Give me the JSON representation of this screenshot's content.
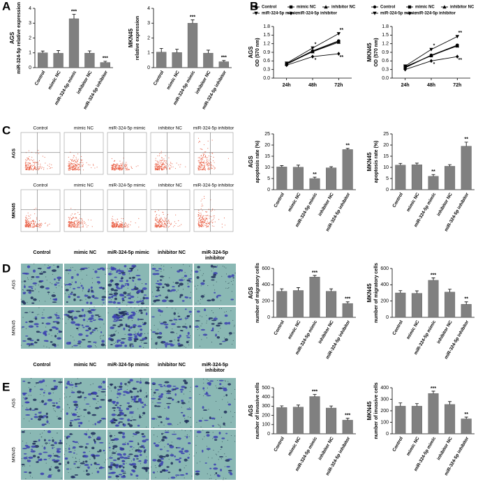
{
  "panels": {
    "letters": [
      "A",
      "B",
      "C",
      "D",
      "E"
    ],
    "columns": [
      "Control",
      "mimic NC",
      "miR-324-5p mimic",
      "inhibitor NC",
      "miR-324-5p inhibitor"
    ],
    "rows": [
      "AGS",
      "MKN45"
    ]
  },
  "chart_data": [
    {
      "type": "bar",
      "panel_label": "AGS",
      "ylabel": "miR-324-5p relative expression",
      "categories": [
        "Control",
        "mimic NC",
        "miR-324-5p mimic",
        "inhibitor NC",
        "miR-324-5p inhibitor"
      ],
      "values": [
        1.0,
        0.97,
        3.3,
        0.98,
        0.35
      ],
      "errors": [
        0.12,
        0.18,
        0.3,
        0.15,
        0.08
      ],
      "annotations": [
        null,
        null,
        "***",
        null,
        "***"
      ],
      "color": "#808080",
      "ylim": [
        0,
        4
      ],
      "yticks": [
        0,
        1,
        2,
        3,
        4
      ]
    },
    {
      "type": "bar",
      "panel_label": "MKN45",
      "ylabel": "relative expression",
      "categories": [
        "Control",
        "mimic NC",
        "miR-324-5p mimic",
        "inhibitor NC",
        "miR-324-5p inhibitor"
      ],
      "values": [
        1.05,
        1.02,
        3.0,
        0.98,
        0.4
      ],
      "errors": [
        0.25,
        0.22,
        0.22,
        0.2,
        0.08
      ],
      "annotations": [
        null,
        null,
        "***",
        null,
        "***"
      ],
      "color": "#808080",
      "ylim": [
        0,
        4
      ],
      "yticks": [
        0,
        1,
        2,
        3,
        4
      ]
    },
    {
      "type": "line",
      "panel_label": "AGS",
      "ylabel": "OD (570 nm)",
      "categories": [
        "24h",
        "48h",
        "72h"
      ],
      "series": [
        {
          "name": "Control",
          "color": "#000000",
          "marker": "circle",
          "values": [
            0.5,
            0.95,
            1.3
          ],
          "annotations": [
            null,
            null,
            null
          ]
        },
        {
          "name": "mimic NC",
          "color": "#000000",
          "marker": "square",
          "values": [
            0.48,
            0.93,
            1.28
          ],
          "annotations": [
            null,
            null,
            null
          ]
        },
        {
          "name": "inhibitor NC",
          "color": "#000000",
          "marker": "triangle",
          "values": [
            0.5,
            0.92,
            1.25
          ],
          "annotations": [
            null,
            null,
            null
          ]
        },
        {
          "name": "miR-324-5p mimic",
          "color": "#000000",
          "marker": "triangle-down",
          "values": [
            0.52,
            1.05,
            1.55
          ],
          "annotations": [
            null,
            "*",
            "**"
          ]
        },
        {
          "name": "miR-324-5p inhibitor",
          "color": "#000000",
          "marker": "diamond",
          "values": [
            0.45,
            0.75,
            0.85
          ],
          "annotations": [
            null,
            "*",
            "**"
          ]
        }
      ],
      "ylim": [
        0,
        1.8
      ],
      "yticks": [
        {
          "value": 0,
          "label": "0.0"
        },
        0.3,
        0.6,
        0.9,
        1.2,
        1.5,
        1.8
      ]
    },
    {
      "type": "line",
      "panel_label": "MKN45",
      "ylabel": "OD (570 nm)",
      "categories": [
        "24h",
        "48h",
        "72h"
      ],
      "series": [
        {
          "name": "Control",
          "color": "#000000",
          "marker": "circle",
          "values": [
            0.38,
            0.8,
            1.15
          ],
          "annotations": [
            null,
            null,
            null
          ]
        },
        {
          "name": "mimic NC",
          "color": "#000000",
          "marker": "square",
          "values": [
            0.4,
            0.78,
            1.13
          ],
          "annotations": [
            null,
            null,
            null
          ]
        },
        {
          "name": "inhibitor NC",
          "color": "#000000",
          "marker": "triangle",
          "values": [
            0.36,
            0.8,
            1.12
          ],
          "annotations": [
            null,
            null,
            null
          ]
        },
        {
          "name": "miR-324-5p mimic",
          "color": "#000000",
          "marker": "triangle-down",
          "values": [
            0.42,
            1.0,
            1.45
          ],
          "annotations": [
            null,
            "*",
            "**"
          ]
        },
        {
          "name": "miR-324-5p inhibitor",
          "color": "#000000",
          "marker": "diamond",
          "values": [
            0.3,
            0.6,
            0.75
          ],
          "annotations": [
            null,
            "*",
            "**"
          ]
        }
      ],
      "ylim": [
        0,
        1.8
      ],
      "yticks": [
        {
          "value": 0,
          "label": "0.0"
        },
        0.3,
        0.6,
        0.9,
        1.2,
        1.5,
        1.8
      ]
    },
    {
      "type": "bar",
      "panel_label": "AGS",
      "ylabel": "apoptosis rate (%)",
      "categories": [
        "Control",
        "mimic NC",
        "miR-324-5p mimic",
        "inhibitor NC",
        "miR-324-5p inhibitor"
      ],
      "values": [
        10.2,
        10.1,
        5.0,
        9.8,
        18.0
      ],
      "errors": [
        0.6,
        0.9,
        0.6,
        0.5,
        0.5
      ],
      "annotations": [
        null,
        null,
        "**",
        null,
        "**"
      ],
      "color": "#808080",
      "ylim": [
        0,
        25
      ],
      "yticks": [
        0,
        5,
        10,
        15,
        20,
        25
      ]
    },
    {
      "type": "bar",
      "panel_label": "MKN45",
      "ylabel": "apoptosis rate (%)",
      "categories": [
        "Control",
        "mimic NC",
        "miR-324-5p mimic",
        "inhibitor NC",
        "miR-324-5p inhibitor"
      ],
      "values": [
        11.0,
        11.2,
        6.0,
        10.5,
        19.5
      ],
      "errors": [
        0.8,
        0.7,
        0.8,
        0.7,
        1.8
      ],
      "annotations": [
        null,
        null,
        "**",
        null,
        "**"
      ],
      "color": "#808080",
      "ylim": [
        0,
        25
      ],
      "yticks": [
        0,
        5,
        10,
        15,
        20,
        25
      ]
    },
    {
      "type": "bar",
      "panel_label": "AGS",
      "ylabel": "number of migratory cells",
      "categories": [
        "Control",
        "mimic NC",
        "miR-324-5p mimic",
        "inhibitor NC",
        "miR-324-5p inhibitor"
      ],
      "values": [
        320,
        330,
        495,
        320,
        170
      ],
      "errors": [
        30,
        35,
        20,
        30,
        20
      ],
      "annotations": [
        null,
        null,
        "***",
        null,
        "***"
      ],
      "color": "#808080",
      "ylim": [
        0,
        600
      ],
      "yticks": [
        0,
        200,
        400,
        600
      ]
    },
    {
      "type": "bar",
      "panel_label": "MKN45",
      "ylabel": "number of migratory cells",
      "categories": [
        "Control",
        "mimic NC",
        "miR-324-5p mimic",
        "inhibitor NC",
        "miR-324-5p inhibitor"
      ],
      "values": [
        300,
        295,
        455,
        310,
        160
      ],
      "errors": [
        28,
        30,
        30,
        35,
        30
      ],
      "annotations": [
        null,
        null,
        "***",
        null,
        "**"
      ],
      "color": "#808080",
      "ylim": [
        0,
        600
      ],
      "yticks": [
        0,
        200,
        400,
        600
      ]
    },
    {
      "type": "bar",
      "panel_label": "AGS",
      "ylabel": "number of invasive cells",
      "categories": [
        "Control",
        "mimic NC",
        "miR-324-5p mimic",
        "inhibitor NC",
        "miR-324-5p inhibitor"
      ],
      "values": [
        285,
        290,
        405,
        280,
        148
      ],
      "errors": [
        18,
        22,
        22,
        22,
        20
      ],
      "annotations": [
        null,
        null,
        "***",
        null,
        "***"
      ],
      "color": "#808080",
      "ylim": [
        0,
        500
      ],
      "yticks": [
        0,
        100,
        200,
        300,
        400,
        500
      ]
    },
    {
      "type": "bar",
      "panel_label": "MKN45",
      "ylabel": "number of invasive cells",
      "categories": [
        "Control",
        "mimic NC",
        "miR-324-5p mimic",
        "inhibitor NC",
        "miR-324-5p inhibitor"
      ],
      "values": [
        240,
        240,
        350,
        255,
        130
      ],
      "errors": [
        28,
        22,
        20,
        25,
        15
      ],
      "annotations": [
        null,
        null,
        "***",
        null,
        "**"
      ],
      "color": "#808080",
      "ylim": [
        0,
        400
      ],
      "yticks": [
        0,
        100,
        200,
        300,
        400
      ]
    }
  ]
}
